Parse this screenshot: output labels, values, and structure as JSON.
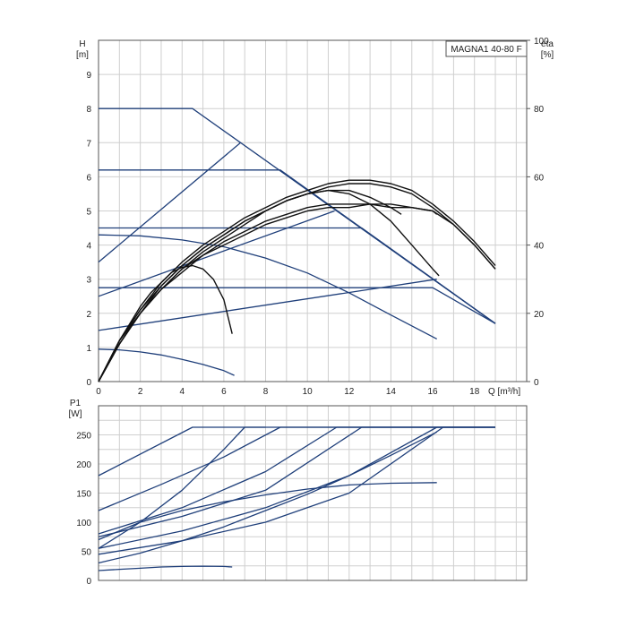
{
  "chart_data": [
    {
      "type": "line",
      "title": "MAGNA1 40-80 F",
      "xlabel": "Q [m³/h]",
      "x_unit_label": "Q [m³/h]",
      "ylabel": "H",
      "ylabel_unit": "[m]",
      "ylabel_right": "eta",
      "ylabel_right_unit": "[%]",
      "xlim": [
        0,
        20.5
      ],
      "ylim": [
        0,
        10
      ],
      "y_right_lim": [
        0,
        100
      ],
      "x_ticks": [
        0,
        2,
        4,
        6,
        8,
        10,
        12,
        14,
        16,
        18
      ],
      "y_ticks": [
        0,
        1,
        2,
        3,
        4,
        5,
        6,
        7,
        8,
        9
      ],
      "y_right_ticks": [
        0,
        20,
        40,
        60,
        80,
        100
      ],
      "grid": true,
      "series": [
        {
          "kind": "head",
          "color": "#1f3f7a",
          "x": [
            0,
            4.5,
            19
          ],
          "y": [
            8,
            8,
            1.7
          ]
        },
        {
          "kind": "head",
          "color": "#1f3f7a",
          "x": [
            0,
            8.7,
            19
          ],
          "y": [
            6.2,
            6.2,
            1.7
          ]
        },
        {
          "kind": "head",
          "color": "#1f3f7a",
          "x": [
            0,
            12.6,
            19
          ],
          "y": [
            4.5,
            4.5,
            1.7
          ]
        },
        {
          "kind": "head",
          "color": "#1f3f7a",
          "x": [
            0,
            16.0,
            19
          ],
          "y": [
            2.75,
            2.75,
            1.7
          ]
        },
        {
          "kind": "head",
          "color": "#1f3f7a",
          "x": [
            0,
            6.8
          ],
          "y": [
            3.5,
            7.0
          ]
        },
        {
          "kind": "head",
          "color": "#1f3f7a",
          "x": [
            0,
            11.3
          ],
          "y": [
            2.5,
            5.0
          ]
        },
        {
          "kind": "head",
          "color": "#1f3f7a",
          "x": [
            0,
            16.2
          ],
          "y": [
            1.5,
            3.0
          ]
        },
        {
          "kind": "head",
          "color": "#1f3f7a",
          "x": [
            0,
            2,
            4,
            6,
            8,
            10,
            12,
            14,
            16.2
          ],
          "y": [
            4.3,
            4.27,
            4.15,
            3.95,
            3.62,
            3.18,
            2.6,
            1.95,
            1.25
          ]
        },
        {
          "kind": "head",
          "color": "#1f3f7a",
          "x": [
            0,
            1,
            2,
            3,
            4,
            5,
            6,
            6.5
          ],
          "y": [
            0.95,
            0.93,
            0.87,
            0.78,
            0.65,
            0.5,
            0.32,
            0.18
          ]
        },
        {
          "kind": "efficiency",
          "color": "#111111",
          "x": [
            0,
            1,
            2,
            3,
            4,
            5,
            6,
            7,
            8,
            9,
            10,
            11,
            12,
            13,
            14,
            15,
            16,
            17,
            18,
            19
          ],
          "y": [
            0,
            12,
            21,
            29,
            35,
            40,
            44,
            48,
            51,
            54,
            56,
            58,
            59,
            59,
            58,
            56,
            52,
            47,
            41,
            34
          ]
        },
        {
          "kind": "efficiency",
          "color": "#111111",
          "x": [
            0,
            1,
            2,
            3,
            4,
            5,
            6,
            7,
            8,
            9,
            10,
            11,
            12,
            13,
            14,
            15,
            16,
            17,
            18,
            19
          ],
          "y": [
            0,
            11,
            20,
            28,
            34,
            39,
            43,
            47,
            50,
            53,
            55,
            57,
            58,
            58,
            57,
            55,
            51,
            46,
            40,
            33
          ]
        },
        {
          "kind": "efficiency",
          "color": "#111111",
          "x": [
            0,
            1,
            2,
            3,
            4,
            5,
            6,
            7,
            8,
            9,
            10,
            11,
            12,
            13,
            14,
            15,
            16,
            17,
            18,
            19
          ],
          "y": [
            0,
            12,
            20,
            27,
            32,
            37,
            41,
            44,
            47,
            49,
            51,
            52,
            52,
            52,
            51,
            51,
            50,
            46,
            40,
            33
          ]
        },
        {
          "kind": "efficiency",
          "color": "#111111",
          "x": [
            0,
            1,
            2,
            3,
            4,
            5,
            6,
            7,
            8,
            9,
            10,
            11,
            12,
            13,
            14,
            15,
            16,
            16.3
          ],
          "y": [
            0,
            12,
            21,
            28,
            34,
            39,
            43,
            47,
            50,
            53,
            55,
            56,
            55,
            52,
            47,
            40,
            33,
            31
          ]
        },
        {
          "kind": "efficiency",
          "color": "#111111",
          "x": [
            0,
            1,
            2,
            3,
            4,
            5,
            6,
            7,
            8,
            9,
            10,
            11,
            12,
            13,
            14,
            14.5
          ],
          "y": [
            0,
            11,
            20,
            27,
            33,
            38,
            42,
            46,
            50,
            53,
            55,
            56,
            56,
            54,
            51,
            49
          ]
        },
        {
          "kind": "efficiency",
          "color": "#111111",
          "x": [
            0,
            1,
            2,
            3,
            4,
            5,
            6,
            7,
            8,
            9,
            10,
            11,
            12,
            13,
            14,
            15,
            16,
            16.2
          ],
          "y": [
            0,
            11,
            20,
            27,
            33,
            37,
            40,
            43,
            46,
            48,
            50,
            51,
            51,
            52,
            52,
            51,
            50,
            49
          ]
        },
        {
          "kind": "efficiency",
          "color": "#111111",
          "x": [
            0,
            0.5,
            1,
            1.5,
            2,
            2.5,
            3,
            3.5,
            4,
            4.5,
            5,
            5.5,
            6,
            6.4
          ],
          "y": [
            0,
            6,
            12,
            17,
            22,
            26,
            29,
            32,
            33.5,
            34,
            33,
            30,
            24,
            14
          ]
        }
      ]
    },
    {
      "type": "line",
      "xlabel": "",
      "ylabel": "P1",
      "ylabel_unit": "[W]",
      "xlim": [
        0,
        20.5
      ],
      "ylim": [
        0,
        300
      ],
      "y_ticks": [
        0,
        50,
        100,
        150,
        200,
        250
      ],
      "grid": true,
      "series": [
        {
          "color": "#1f3f7a",
          "x": [
            0,
            4.5,
            19
          ],
          "y": [
            180,
            263,
            263
          ]
        },
        {
          "color": "#1f3f7a",
          "x": [
            0,
            3,
            6,
            8.7,
            19
          ],
          "y": [
            120,
            165,
            212,
            263,
            263
          ]
        },
        {
          "color": "#1f3f7a",
          "x": [
            0,
            4,
            8,
            11.4,
            19
          ],
          "y": [
            80,
            125,
            187,
            263,
            263
          ]
        },
        {
          "color": "#1f3f7a",
          "x": [
            0,
            4,
            8,
            12.6,
            19
          ],
          "y": [
            75,
            110,
            155,
            263,
            263
          ]
        },
        {
          "color": "#1f3f7a",
          "x": [
            0,
            4,
            8,
            12,
            16.2,
            19
          ],
          "y": [
            55,
            85,
            125,
            180,
            263,
            263
          ]
        },
        {
          "color": "#1f3f7a",
          "x": [
            0,
            4,
            8,
            12,
            16.5,
            19
          ],
          "y": [
            45,
            68,
            100,
            150,
            263,
            263
          ]
        },
        {
          "color": "#1f3f7a",
          "x": [
            0,
            2,
            4,
            6,
            8,
            10,
            12,
            14,
            16.2
          ],
          "y": [
            30,
            47,
            68,
            92,
            120,
            148,
            180,
            215,
            255
          ]
        },
        {
          "color": "#1f3f7a",
          "x": [
            0,
            2,
            4,
            6,
            7,
            8
          ],
          "y": [
            55,
            100,
            155,
            225,
            263,
            263
          ]
        },
        {
          "color": "#1f3f7a",
          "x": [
            0,
            2,
            4,
            6,
            8,
            10,
            12,
            14,
            16.2
          ],
          "y": [
            70,
            100,
            120,
            135,
            147,
            157,
            164,
            167,
            168
          ]
        },
        {
          "color": "#1f3f7a",
          "x": [
            0,
            1,
            2,
            3,
            4,
            5,
            6,
            6.4
          ],
          "y": [
            17,
            19,
            21,
            23,
            24,
            24.5,
            24,
            23
          ]
        }
      ]
    }
  ]
}
